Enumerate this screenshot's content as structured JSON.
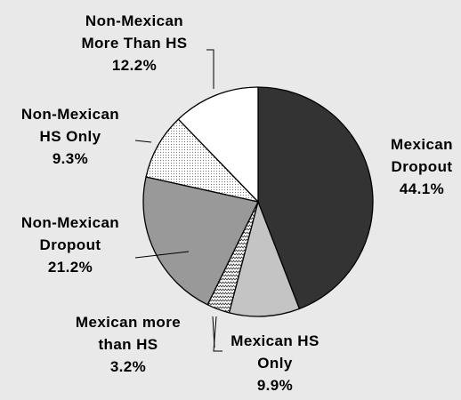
{
  "chart_data": {
    "type": "pie",
    "start": "12 o'clock",
    "direction": "clockwise",
    "slices": [
      {
        "label_lines": [
          "Mexican",
          "Dropout"
        ],
        "value": 44.1,
        "value_label": "44.1%",
        "fill": "#333333",
        "pattern": "solid"
      },
      {
        "label_lines": [
          "Mexican HS",
          "Only"
        ],
        "value": 9.9,
        "value_label": "9.9%",
        "fill": "#c4c4c4",
        "pattern": "solid"
      },
      {
        "label_lines": [
          "Mexican more",
          "than HS"
        ],
        "value": 3.2,
        "value_label": "3.2%",
        "fill": "#ffffff",
        "pattern": "zigzag"
      },
      {
        "label_lines": [
          "Non-Mexican",
          "Dropout"
        ],
        "value": 21.2,
        "value_label": "21.2%",
        "fill": "#999999",
        "pattern": "solid"
      },
      {
        "label_lines": [
          "Non-Mexican",
          "HS Only"
        ],
        "value": 9.3,
        "value_label": "9.3%",
        "fill": "#ffffff",
        "pattern": "dots"
      },
      {
        "label_lines": [
          "Non-Mexican",
          "More Than HS"
        ],
        "value": 12.2,
        "value_label": "12.2%",
        "fill": "#ffffff",
        "pattern": "solid"
      }
    ],
    "legend": "none",
    "background": "#e9e9e9"
  }
}
